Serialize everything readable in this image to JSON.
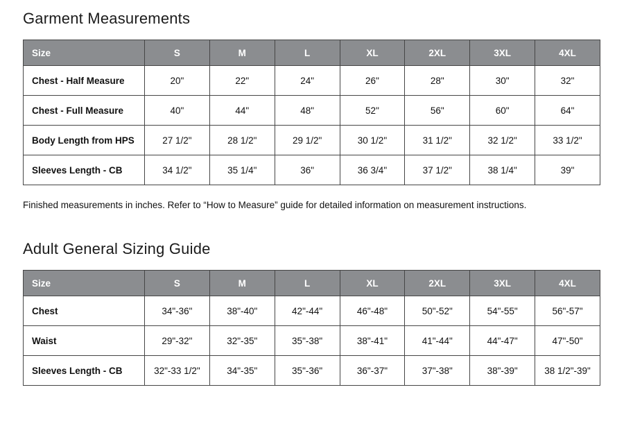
{
  "colors": {
    "header_bg": "#8b8d90",
    "header_text": "#ffffff",
    "border": "#454545",
    "body_text": "#111111",
    "page_bg": "#ffffff"
  },
  "sections": [
    {
      "title": "Garment Measurements",
      "note": "Finished measurements in inches. Refer to “How to Measure” guide for detailed information on measurement instructions.",
      "table": {
        "header": [
          "Size",
          "S",
          "M",
          "L",
          "XL",
          "2XL",
          "3XL",
          "4XL"
        ],
        "rows": [
          {
            "label": "Chest - Half Measure",
            "values": [
              "20\"",
              "22\"",
              "24\"",
              "26\"",
              "28\"",
              "30\"",
              "32\""
            ]
          },
          {
            "label": "Chest - Full Measure",
            "values": [
              "40\"",
              "44\"",
              "48\"",
              "52\"",
              "56\"",
              "60\"",
              "64\""
            ]
          },
          {
            "label": "Body Length from HPS",
            "values": [
              "27 1/2\"",
              "28 1/2\"",
              "29 1/2\"",
              "30 1/2\"",
              "31 1/2\"",
              "32 1/2\"",
              "33 1/2\""
            ]
          },
          {
            "label": "Sleeves Length - CB",
            "values": [
              "34 1/2\"",
              "35 1/4\"",
              "36\"",
              "36 3/4\"",
              "37 1/2\"",
              "38 1/4\"",
              "39\""
            ]
          }
        ]
      }
    },
    {
      "title": "Adult General Sizing Guide",
      "table": {
        "header": [
          "Size",
          "S",
          "M",
          "L",
          "XL",
          "2XL",
          "3XL",
          "4XL"
        ],
        "rows": [
          {
            "label": "Chest",
            "values": [
              "34\"-36\"",
              "38\"-40\"",
              "42\"-44\"",
              "46\"-48\"",
              "50\"-52\"",
              "54\"-55\"",
              "56\"-57\""
            ]
          },
          {
            "label": "Waist",
            "values": [
              "29\"-32\"",
              "32\"-35\"",
              "35\"-38\"",
              "38\"-41\"",
              "41\"-44\"",
              "44\"-47\"",
              "47\"-50\""
            ]
          },
          {
            "label": "Sleeves Length - CB",
            "values": [
              "32\"-33 1/2\"",
              "34\"-35\"",
              "35\"-36\"",
              "36\"-37\"",
              "37\"-38\"",
              "38\"-39\"",
              "38 1/2\"-39\""
            ]
          }
        ]
      }
    }
  ]
}
